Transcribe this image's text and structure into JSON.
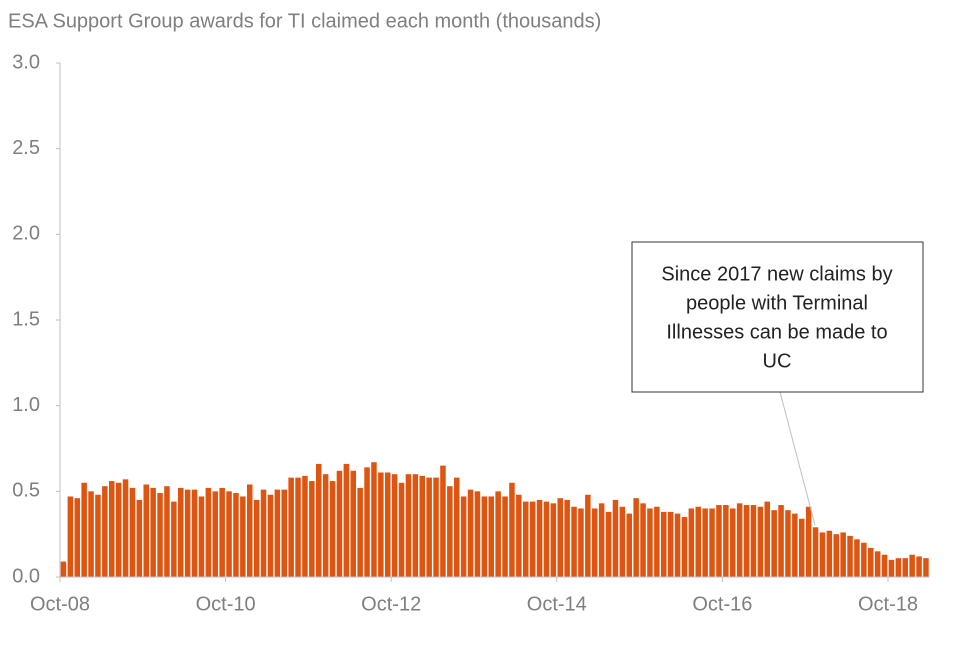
{
  "chart_data": {
    "type": "bar",
    "title": "ESA Support Group awards for TI claimed each month (thousands)",
    "color": "#dd5511",
    "ylim": [
      0,
      3
    ],
    "yticks": [
      {
        "value": 0,
        "label": "0.0"
      },
      0.5,
      {
        "value": 1,
        "label": "1.0"
      },
      1.5,
      {
        "value": 2,
        "label": "2.0"
      },
      2.5,
      {
        "value": 3,
        "label": "3.0"
      }
    ],
    "annotation": [
      "Since 2017 new claims by",
      "people with Terminal",
      "Illnesses can be made to",
      "UC"
    ],
    "categories": [
      "Oct-08",
      null,
      null,
      null,
      null,
      null,
      null,
      null,
      null,
      null,
      null,
      null,
      null,
      null,
      null,
      null,
      null,
      null,
      null,
      null,
      null,
      null,
      null,
      null,
      "Oct-10",
      null,
      null,
      null,
      null,
      null,
      null,
      null,
      null,
      null,
      null,
      null,
      null,
      null,
      null,
      null,
      null,
      null,
      null,
      null,
      null,
      null,
      null,
      null,
      "Oct-12",
      null,
      null,
      null,
      null,
      null,
      null,
      null,
      null,
      null,
      null,
      null,
      null,
      null,
      null,
      null,
      null,
      null,
      null,
      null,
      null,
      null,
      null,
      null,
      "Oct-14",
      null,
      null,
      null,
      null,
      null,
      null,
      null,
      null,
      null,
      null,
      null,
      null,
      null,
      null,
      null,
      null,
      null,
      null,
      null,
      null,
      null,
      null,
      null,
      "Oct-16",
      null,
      null,
      null,
      null,
      null,
      null,
      null,
      null,
      null,
      null,
      null,
      null,
      null,
      null,
      null,
      null,
      null,
      null,
      null,
      null,
      null,
      null,
      null,
      "Oct-18",
      null,
      null,
      null,
      null,
      null
    ],
    "values": [
      0.09,
      0.47,
      0.46,
      0.55,
      0.5,
      0.48,
      0.53,
      0.56,
      0.55,
      0.57,
      0.52,
      0.45,
      0.54,
      0.52,
      0.49,
      0.53,
      0.44,
      0.52,
      0.51,
      0.51,
      0.47,
      0.52,
      0.5,
      0.52,
      0.5,
      0.49,
      0.47,
      0.54,
      0.45,
      0.51,
      0.48,
      0.51,
      0.51,
      0.58,
      0.58,
      0.59,
      0.56,
      0.66,
      0.6,
      0.56,
      0.62,
      0.66,
      0.62,
      0.52,
      0.64,
      0.67,
      0.61,
      0.61,
      0.6,
      0.55,
      0.6,
      0.6,
      0.59,
      0.58,
      0.58,
      0.65,
      0.53,
      0.58,
      0.47,
      0.51,
      0.5,
      0.47,
      0.47,
      0.5,
      0.47,
      0.55,
      0.48,
      0.44,
      0.44,
      0.45,
      0.44,
      0.43,
      0.46,
      0.45,
      0.41,
      0.4,
      0.48,
      0.4,
      0.43,
      0.38,
      0.45,
      0.41,
      0.37,
      0.46,
      0.43,
      0.4,
      0.41,
      0.38,
      0.38,
      0.37,
      0.35,
      0.4,
      0.41,
      0.4,
      0.4,
      0.42,
      0.42,
      0.4,
      0.43,
      0.42,
      0.42,
      0.41,
      0.44,
      0.39,
      0.42,
      0.39,
      0.37,
      0.34,
      0.41,
      0.29,
      0.26,
      0.27,
      0.25,
      0.26,
      0.24,
      0.22,
      0.2,
      0.17,
      0.15,
      0.13,
      0.1,
      0.11,
      0.11,
      0.13,
      0.12,
      0.11
    ]
  }
}
